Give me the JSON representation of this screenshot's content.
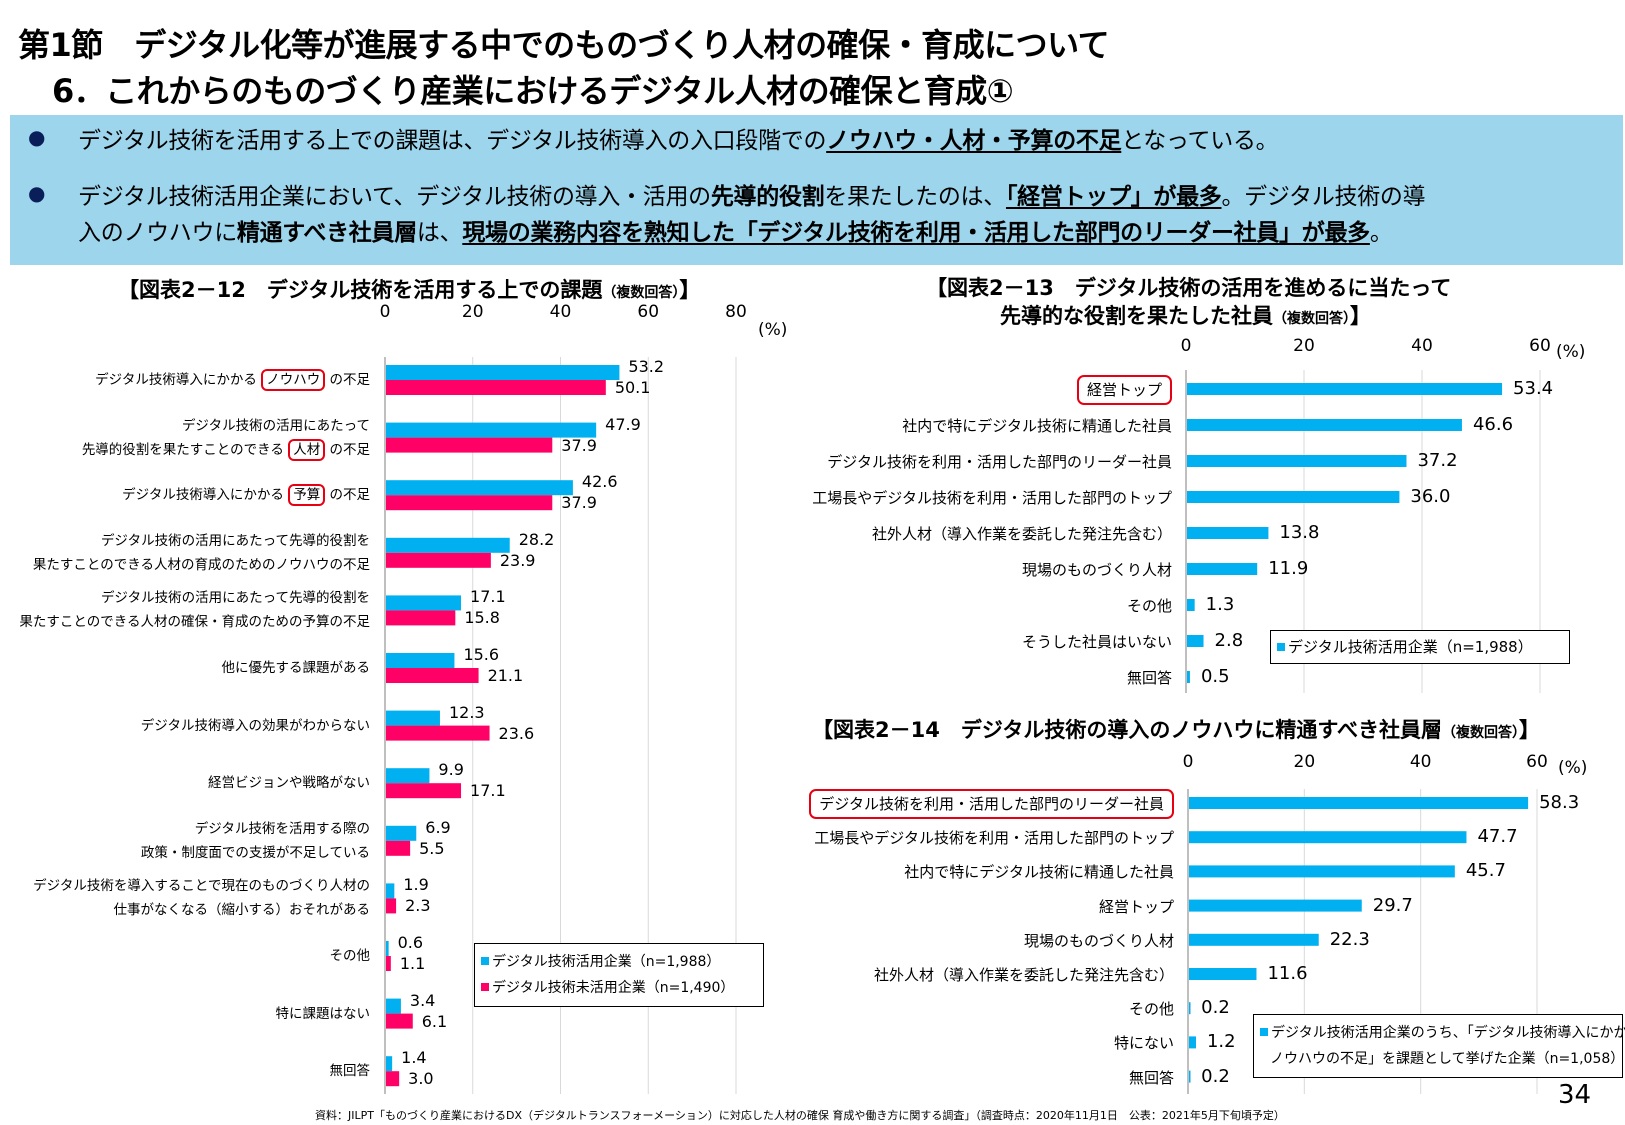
{
  "header": {
    "section_title": "第1節　デジタル化等が進展する中でのものづくり人材の確保・育成について",
    "subsection_title": "6．これからのものづくり産業におけるデジタル人材の確保と育成①"
  },
  "summary": {
    "bullets": [
      [
        {
          "t": "デジタル技術を活用する上での課題は、デジタル技術導入の入口段階での"
        },
        {
          "t": "ノウハウ・人材・予算の不足",
          "b": true,
          "u": true
        },
        {
          "t": "となっている。"
        }
      ],
      [
        {
          "t": "デジタル技術活用企業において、デジタル技術の導入・活用の"
        },
        {
          "t": "先導的役割",
          "b": true
        },
        {
          "t": "を果たしたのは、"
        },
        {
          "t": "「経営トップ」が最多",
          "b": true,
          "u": true
        },
        {
          "t": "。デジタル技術の導"
        }
      ],
      [
        {
          "t": "入のノウハウに"
        },
        {
          "t": "精通すべき社員層",
          "b": true
        },
        {
          "t": "は、"
        },
        {
          "t": "現場の業務内容を熟知した「デジタル技術を利用・活用した部門のリーダー社員」が最多",
          "b": true,
          "u": true
        },
        {
          "t": "。"
        }
      ]
    ]
  },
  "colors": {
    "series_blue": "#00b0f0",
    "series_pink": "#ff0066",
    "highlight_box": "#e60012",
    "banner": "#9dd5ec"
  },
  "chart_data": [
    {
      "type": "bar",
      "orientation": "horizontal",
      "title": "【図表2－12　デジタル技術を活用する上での課題",
      "title_note": "（複数回答）",
      "title_end": "】",
      "unit": "(%)",
      "xlim": [
        0,
        80
      ],
      "ticks": [
        "0",
        "20",
        "40",
        "60",
        "80"
      ],
      "grid": true,
      "legend_placement": "bottom-right",
      "categories": [
        [
          {
            "text": "デジタル技術導入にかかる ",
            "box": "ノウハウ",
            "post": " の不足"
          }
        ],
        [
          {
            "text": "デジタル技術の活用にあたって"
          },
          {
            "text": "先導的役割を果たすことのできる ",
            "box": "人材",
            "post": " の不足"
          }
        ],
        [
          {
            "text": "デジタル技術導入にかかる ",
            "box": "予算",
            "post": " の不足"
          }
        ],
        [
          {
            "text": "デジタル技術の活用にあたって先導的役割を"
          },
          {
            "text": "果たすことのできる人材の育成のためのノウハウの不足"
          }
        ],
        [
          {
            "text": "デジタル技術の活用にあたって先導的役割を"
          },
          {
            "text": "果たすことのできる人材の確保・育成のための予算の不足"
          }
        ],
        [
          {
            "text": "他に優先する課題がある"
          }
        ],
        [
          {
            "text": "デジタル技術導入の効果がわからない"
          }
        ],
        [
          {
            "text": "経営ビジョンや戦略がない"
          }
        ],
        [
          {
            "text": "デジタル技術を活用する際の"
          },
          {
            "text": "政策・制度面での支援が不足している"
          }
        ],
        [
          {
            "text": "デジタル技術を導入することで現在のものづくり人材の"
          },
          {
            "text": "仕事がなくなる（縮小する）おそれがある"
          }
        ],
        [
          {
            "text": "その他"
          }
        ],
        [
          {
            "text": "特に課題はない"
          }
        ],
        [
          {
            "text": "無回答"
          }
        ]
      ],
      "series": [
        {
          "name": "デジタル技術活用企業（n=1,988）",
          "color": "#00b0f0",
          "values": [
            53.2,
            47.9,
            42.6,
            28.2,
            17.1,
            15.6,
            12.3,
            9.9,
            6.9,
            1.9,
            0.6,
            3.4,
            1.4
          ],
          "labels": [
            "53.2",
            "47.9",
            "42.6",
            "28.2",
            "17.1",
            "15.6",
            "12.3",
            "9.9",
            "6.9",
            "1.9",
            "0.6",
            "3.4",
            "1.4"
          ]
        },
        {
          "name": "デジタル技術未活用企業（n=1,490）",
          "color": "#ff0066",
          "values": [
            50.1,
            37.9,
            37.9,
            23.9,
            15.8,
            21.1,
            23.6,
            17.1,
            5.5,
            2.3,
            1.1,
            6.1,
            3.0
          ],
          "labels": [
            "50.1",
            "37.9",
            "37.9",
            "23.9",
            "15.8",
            "21.1",
            "23.6",
            "17.1",
            "5.5",
            "2.3",
            "1.1",
            "6.1",
            "3.0"
          ]
        }
      ]
    },
    {
      "type": "bar",
      "orientation": "horizontal",
      "title": "【図表2－13　デジタル技術の活用を進めるに当たって",
      "title_line2": "先導的な役割を果たした社員",
      "title_note": "（複数回答）",
      "title_end": "】",
      "unit": "(%)",
      "xlim": [
        0,
        60
      ],
      "ticks": [
        "0",
        "20",
        "40",
        "60"
      ],
      "grid": true,
      "legend_placement": "bottom-right",
      "highlighted_category": 0,
      "categories": [
        "経営トップ",
        "社内で特にデジタル技術に精通した社員",
        "デジタル技術を利用・活用した部門のリーダー社員",
        "工場長やデジタル技術を利用・活用した部門のトップ",
        "社外人材（導入作業を委託した発注先含む）",
        "現場のものづくり人材",
        "その他",
        "そうした社員はいない",
        "無回答"
      ],
      "series": [
        {
          "name": "デジタル技術活用企業（n=1,988）",
          "color": "#00b0f0",
          "values": [
            53.4,
            46.6,
            37.2,
            36.0,
            13.8,
            11.9,
            1.3,
            2.8,
            0.5
          ],
          "labels": [
            "53.4",
            "46.6",
            "37.2",
            "36.0",
            "13.8",
            "11.9",
            "1.3",
            "2.8",
            "0.5"
          ]
        }
      ]
    },
    {
      "type": "bar",
      "orientation": "horizontal",
      "title": "【図表2－14　デジタル技術の導入のノウハウに精通すべき社員層",
      "title_note": "（複数回答）",
      "title_end": "】",
      "unit": "(%)",
      "xlim": [
        0,
        60
      ],
      "ticks": [
        "0",
        "20",
        "40",
        "60"
      ],
      "grid": true,
      "legend_placement": "bottom-right",
      "highlighted_category": 0,
      "categories": [
        "デジタル技術を利用・活用した部門のリーダー社員",
        "工場長やデジタル技術を利用・活用した部門のトップ",
        "社内で特にデジタル技術に精通した社員",
        "経営トップ",
        "現場のものづくり人材",
        "社外人材（導入作業を委託した発注先含む）",
        "その他",
        "特にない",
        "無回答"
      ],
      "series": [
        {
          "name": "デジタル技術活用企業のうち、「デジタル技術導入にかかる",
          "name_line2": "ノウハウの不足」を課題として挙げた企業（n=1,058）",
          "color": "#00b0f0",
          "values": [
            58.3,
            47.7,
            45.7,
            29.7,
            22.3,
            11.6,
            0.2,
            1.2,
            0.2
          ],
          "labels": [
            "58.3",
            "47.7",
            "45.7",
            "29.7",
            "22.3",
            "11.6",
            "0.2",
            "1.2",
            "0.2"
          ]
        }
      ]
    }
  ],
  "footer": {
    "source": "資料：JILPT「ものづくり産業におけるDX（デジタルトランスフォーメーション）に対応した人材の確保 育成や働き方に関する調査」（調査時点：2020年11月1日　公表：2021年5月下旬頃予定）",
    "page_number": "34"
  }
}
